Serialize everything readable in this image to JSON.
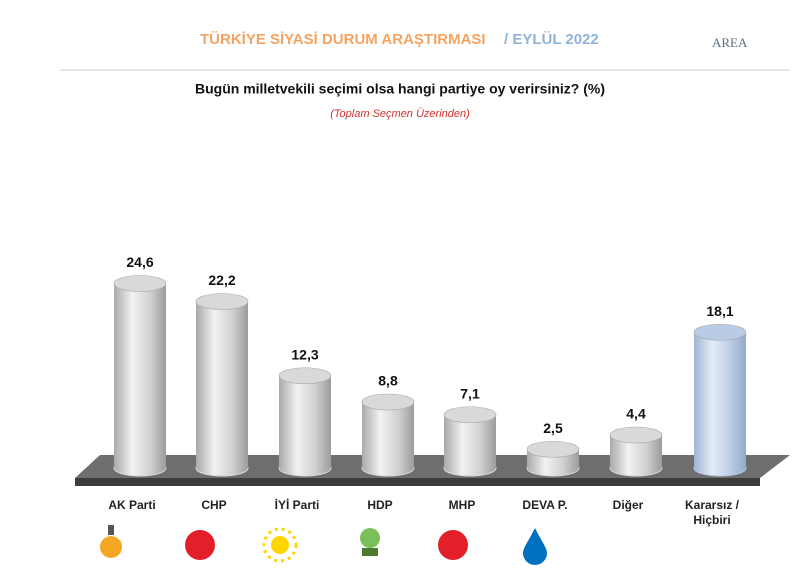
{
  "header": {
    "title": "TÜRKİYE SİYASİ DURUM ARAŞTIRMASI",
    "date": "/ EYLÜL 2022",
    "logo": "AREA"
  },
  "chart_data": {
    "type": "bar",
    "title": "Bugün milletvekili seçimi olsa hangi partiye oy verirsiniz? (%)",
    "subtitle": "(Toplam Seçmen Üzerinden)",
    "categories": [
      "AK Parti",
      "CHP",
      "İYİ Parti",
      "HDP",
      "MHP",
      "DEVA P.",
      "Diğer",
      "Kararsız / Hiçbiri"
    ],
    "values": [
      24.6,
      22.2,
      12.3,
      8.8,
      7.1,
      2.5,
      4.4,
      18.1
    ],
    "value_labels": [
      "24,6",
      "22,2",
      "12,3",
      "8,8",
      "7,1",
      "2,5",
      "4,4",
      "18,1"
    ],
    "colors": [
      "#d9d9d9",
      "#d9d9d9",
      "#d9d9d9",
      "#d9d9d9",
      "#d9d9d9",
      "#d9d9d9",
      "#d9d9d9",
      "#b8cce4"
    ]
  }
}
